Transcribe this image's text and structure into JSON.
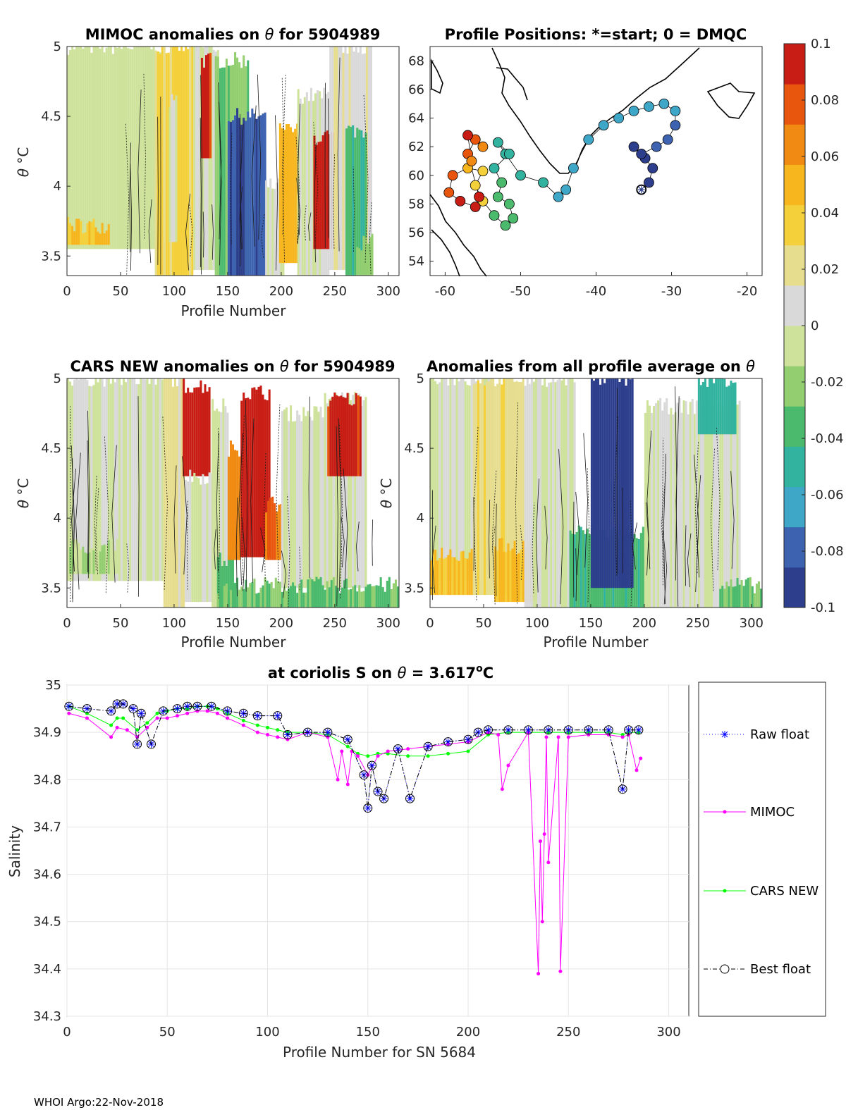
{
  "footer": "WHOI Argo:22-Nov-2018",
  "colors": {
    "raw": "#0000ff",
    "mimoc": "#ff00ff",
    "cars": "#00ff00",
    "best": "#000000",
    "colormap": [
      "#2c3e8c",
      "#3d62b0",
      "#3ea7c8",
      "#31b39f",
      "#4cba6c",
      "#93cf70",
      "#cfe29b",
      "#d9d9d9",
      "#e6dd8e",
      "#f4d03a",
      "#f7b51e",
      "#f08a12",
      "#e8560e",
      "#c81d14"
    ]
  },
  "chart_data": [
    {
      "id": "mimoc",
      "type": "heatmap",
      "title_prefix": "MIMOC anomalies on",
      "title_symbol": "θ",
      "title_suffix": "for 5904989",
      "xlabel": "Profile Number",
      "ylabel_symbol": "θ",
      "ylabel_unit": "°C",
      "xlim": [
        0,
        310
      ],
      "ylim": [
        3.36,
        5.0
      ],
      "xticks": [
        "0",
        "50",
        "100",
        "150",
        "200",
        "250",
        "300"
      ],
      "yticks": [
        "3.5",
        "4",
        "4.5",
        "5"
      ],
      "segments": [
        {
          "x": [
            0,
            88
          ],
          "ymin": 3.55,
          "ymax": 5.0,
          "anom": -0.008
        },
        {
          "x": [
            0,
            40
          ],
          "ymin": 3.58,
          "ymax": 3.72,
          "anom": 0.045
        },
        {
          "x": [
            82,
            118
          ],
          "ymin": 3.36,
          "ymax": 5.0,
          "anom": 0.03
        },
        {
          "x": [
            95,
            102
          ],
          "ymin": 3.6,
          "ymax": 4.6,
          "anom": 0.0
        },
        {
          "x": [
            118,
            142
          ],
          "ymin": 3.4,
          "ymax": 5.0,
          "anom": 0.0
        },
        {
          "x": [
            125,
            135
          ],
          "ymin": 4.2,
          "ymax": 4.9,
          "anom": 0.09
        },
        {
          "x": [
            138,
            170
          ],
          "ymin": 3.36,
          "ymax": 4.9,
          "anom": -0.025
        },
        {
          "x": [
            150,
            185
          ],
          "ymin": 3.36,
          "ymax": 4.5,
          "anom": -0.085
        },
        {
          "x": [
            185,
            203
          ],
          "ymin": 3.36,
          "ymax": 4.0,
          "anom": 0.0
        },
        {
          "x": [
            198,
            218
          ],
          "ymin": 3.45,
          "ymax": 4.4,
          "anom": 0.05
        },
        {
          "x": [
            215,
            245
          ],
          "ymin": 3.36,
          "ymax": 4.65,
          "anom": 0.0
        },
        {
          "x": [
            230,
            250
          ],
          "ymin": 3.55,
          "ymax": 4.35,
          "anom": 0.1
        },
        {
          "x": [
            245,
            285
          ],
          "ymin": 3.4,
          "ymax": 5.0,
          "anom": 0.012
        },
        {
          "x": [
            260,
            280
          ],
          "ymin": 3.36,
          "ymax": 4.4,
          "anom": -0.04
        },
        {
          "x": [
            270,
            285
          ],
          "ymin": 3.36,
          "ymax": 3.6,
          "anom": -0.02
        }
      ]
    },
    {
      "id": "positions",
      "type": "scatter",
      "title": "Profile Positions: *=start; 0 = DMQC",
      "xlim": [
        -62,
        -18
      ],
      "ylim": [
        53,
        69
      ],
      "xticks": [
        "-60",
        "-50",
        "-40",
        "-30",
        "-20"
      ],
      "yticks": [
        "54",
        "56",
        "58",
        "60",
        "62",
        "64",
        "66",
        "68"
      ],
      "start_marker": {
        "lon": -34,
        "lat": 59
      },
      "track": [
        {
          "lon": -34,
          "lat": 59,
          "anom": -0.095
        },
        {
          "lon": -33,
          "lat": 59.5,
          "anom": -0.095
        },
        {
          "lon": -32.5,
          "lat": 60.5,
          "anom": -0.092
        },
        {
          "lon": -33.5,
          "lat": 61.2,
          "anom": -0.09
        },
        {
          "lon": -35,
          "lat": 62,
          "anom": -0.088
        },
        {
          "lon": -34,
          "lat": 61.5,
          "anom": -0.088
        },
        {
          "lon": -32,
          "lat": 62,
          "anom": -0.085
        },
        {
          "lon": -30.5,
          "lat": 62.5,
          "anom": -0.08
        },
        {
          "lon": -29.5,
          "lat": 63.5,
          "anom": -0.075
        },
        {
          "lon": -29.5,
          "lat": 64.5,
          "anom": -0.07
        },
        {
          "lon": -31,
          "lat": 65,
          "anom": -0.066
        },
        {
          "lon": -33,
          "lat": 64.8,
          "anom": -0.066
        },
        {
          "lon": -35,
          "lat": 64.5,
          "anom": -0.064
        },
        {
          "lon": -37,
          "lat": 64,
          "anom": -0.064
        },
        {
          "lon": -39,
          "lat": 63.5,
          "anom": -0.064
        },
        {
          "lon": -41,
          "lat": 62.5,
          "anom": -0.062
        },
        {
          "lon": -43,
          "lat": 60.5,
          "anom": -0.06
        },
        {
          "lon": -44,
          "lat": 59,
          "anom": -0.058
        },
        {
          "lon": -45,
          "lat": 58.5,
          "anom": -0.058
        },
        {
          "lon": -47,
          "lat": 59.5,
          "anom": -0.056
        },
        {
          "lon": -50,
          "lat": 60,
          "anom": -0.054
        },
        {
          "lon": -52,
          "lat": 61.5,
          "anom": -0.05
        },
        {
          "lon": -53,
          "lat": 62.3,
          "anom": -0.05
        },
        {
          "lon": -51.5,
          "lat": 61.5,
          "anom": -0.046
        },
        {
          "lon": -53.5,
          "lat": 60.5,
          "anom": -0.044
        },
        {
          "lon": -52.5,
          "lat": 59.5,
          "anom": -0.042
        },
        {
          "lon": -53,
          "lat": 58.5,
          "anom": -0.04
        },
        {
          "lon": -51.5,
          "lat": 58,
          "anom": -0.038
        },
        {
          "lon": -51,
          "lat": 57,
          "anom": -0.036
        },
        {
          "lon": -52,
          "lat": 56.5,
          "anom": -0.034
        },
        {
          "lon": -53.5,
          "lat": 57.2,
          "anom": -0.032
        },
        {
          "lon": -55,
          "lat": 58.2,
          "anom": 0.032
        },
        {
          "lon": -56,
          "lat": 59.3,
          "anom": 0.035
        },
        {
          "lon": -55,
          "lat": 60.3,
          "anom": 0.04
        },
        {
          "lon": -57,
          "lat": 60.5,
          "anom": 0.05
        },
        {
          "lon": -59,
          "lat": 60,
          "anom": 0.08
        },
        {
          "lon": -59.5,
          "lat": 58.8,
          "anom": 0.085
        },
        {
          "lon": -58,
          "lat": 58.2,
          "anom": 0.09
        },
        {
          "lon": -56,
          "lat": 57.8,
          "anom": 0.1
        },
        {
          "lon": -55.5,
          "lat": 58.5,
          "anom": 0.095
        },
        {
          "lon": -57,
          "lat": 61.5,
          "anom": 0.085
        },
        {
          "lon": -56,
          "lat": 62.5,
          "anom": 0.08
        },
        {
          "lon": -55,
          "lat": 62,
          "anom": 0.07
        },
        {
          "lon": -57,
          "lat": 62.8,
          "anom": 0.09
        },
        {
          "lon": -56.5,
          "lat": 61,
          "anom": 0.06
        }
      ]
    },
    {
      "id": "cars",
      "type": "heatmap",
      "title_prefix": "CARS NEW anomalies on",
      "title_symbol": "θ",
      "title_suffix": "for 5904989",
      "xlabel": "Profile Number",
      "ylabel_symbol": "θ",
      "ylabel_unit": "°C",
      "xlim": [
        0,
        310
      ],
      "ylim": [
        3.36,
        5.0
      ],
      "xticks": [
        "0",
        "50",
        "100",
        "150",
        "200",
        "250",
        "300"
      ],
      "yticks": [
        "3.5",
        "4",
        "4.5",
        "5"
      ],
      "segments": [
        {
          "x": [
            0,
            90
          ],
          "ymin": 3.55,
          "ymax": 5.0,
          "anom": 0.0
        },
        {
          "x": [
            0,
            50
          ],
          "ymin": 3.6,
          "ymax": 3.8,
          "anom": -0.015
        },
        {
          "x": [
            90,
            110
          ],
          "ymin": 3.36,
          "ymax": 5.0,
          "anom": 0.02
        },
        {
          "x": [
            108,
            133
          ],
          "ymin": 4.3,
          "ymax": 4.95,
          "anom": 0.1
        },
        {
          "x": [
            110,
            135
          ],
          "ymin": 3.4,
          "ymax": 4.3,
          "anom": 0.0
        },
        {
          "x": [
            135,
            150
          ],
          "ymin": 3.36,
          "ymax": 4.8,
          "anom": 0.0
        },
        {
          "x": [
            140,
            155
          ],
          "ymin": 3.36,
          "ymax": 3.7,
          "anom": -0.04
        },
        {
          "x": [
            150,
            162
          ],
          "ymin": 3.7,
          "ymax": 4.5,
          "anom": 0.06
        },
        {
          "x": [
            162,
            190
          ],
          "ymin": 3.72,
          "ymax": 4.9,
          "anom": 0.1
        },
        {
          "x": [
            185,
            200
          ],
          "ymin": 3.7,
          "ymax": 4.1,
          "anom": 0.07
        },
        {
          "x": [
            200,
            245
          ],
          "ymin": 3.5,
          "ymax": 4.75,
          "anom": 0.0
        },
        {
          "x": [
            240,
            280
          ],
          "ymin": 3.5,
          "ymax": 4.85,
          "anom": 0.0
        },
        {
          "x": [
            243,
            275
          ],
          "ymin": 4.3,
          "ymax": 4.85,
          "anom": 0.09
        },
        {
          "x": [
            140,
            310
          ],
          "ymin": 3.36,
          "ymax": 3.52,
          "anom": -0.03
        }
      ]
    },
    {
      "id": "allavg",
      "type": "heatmap",
      "title_prefix": "Anomalies from all profile average on",
      "title_symbol": "θ",
      "title_suffix": "",
      "xlabel": "Profile Number",
      "ylabel_symbol": "θ",
      "ylabel_unit": "°C",
      "xlim": [
        0,
        310
      ],
      "ylim": [
        3.36,
        5.0
      ],
      "xticks": [
        "0",
        "50",
        "100",
        "150",
        "200",
        "250",
        "300"
      ],
      "yticks": [
        "3.5",
        "4",
        "4.5",
        "5"
      ],
      "segments": [
        {
          "x": [
            0,
            60
          ],
          "ymin": 3.55,
          "ymax": 5.0,
          "anom": 0.0
        },
        {
          "x": [
            0,
            40
          ],
          "ymin": 3.45,
          "ymax": 3.75,
          "anom": 0.045
        },
        {
          "x": [
            40,
            88
          ],
          "ymin": 3.45,
          "ymax": 5.0,
          "anom": 0.025
        },
        {
          "x": [
            60,
            100
          ],
          "ymin": 3.4,
          "ymax": 3.8,
          "anom": 0.045
        },
        {
          "x": [
            88,
            135
          ],
          "ymin": 3.36,
          "ymax": 5.0,
          "anom": 0.0
        },
        {
          "x": [
            130,
            200
          ],
          "ymin": 3.36,
          "ymax": 3.9,
          "anom": -0.04
        },
        {
          "x": [
            150,
            190
          ],
          "ymin": 3.5,
          "ymax": 5.0,
          "anom": -0.095
        },
        {
          "x": [
            200,
            290
          ],
          "ymin": 3.36,
          "ymax": 4.8,
          "anom": 0.0
        },
        {
          "x": [
            250,
            285
          ],
          "ymin": 4.6,
          "ymax": 5.0,
          "anom": -0.05
        },
        {
          "x": [
            270,
            310
          ],
          "ymin": 3.36,
          "ymax": 3.52,
          "anom": -0.03
        }
      ]
    }
  ],
  "colorbar": {
    "min": -0.1,
    "max": 0.1,
    "ticks": [
      "0.1",
      "0.08",
      "0.06",
      "0.04",
      "0.02",
      "0",
      "-0.02",
      "-0.04",
      "-0.06",
      "-0.08",
      "-0.1"
    ]
  },
  "salinity": {
    "type": "line",
    "title_prefix": "at coriolis S on",
    "title_symbol": "θ",
    "title_mid": "= 3.617",
    "title_unit_sup": "o",
    "title_unit": "C",
    "xlabel": "Profile Number for SN 5684",
    "ylabel": "Salinity",
    "xlim": [
      0,
      310
    ],
    "ylim": [
      34.3,
      35.0
    ],
    "xticks": [
      "0",
      "50",
      "100",
      "150",
      "200",
      "250",
      "300"
    ],
    "yticks": [
      "34.3",
      "34.4",
      "34.5",
      "34.6",
      "34.7",
      "34.8",
      "34.9",
      "35"
    ],
    "legend": [
      "Raw float",
      "MIMOC",
      "CARS NEW",
      "Best float"
    ],
    "series": [
      {
        "name": "Raw float",
        "x": [
          1,
          10,
          22,
          25,
          28,
          33,
          35,
          37,
          42,
          48,
          55,
          60,
          65,
          72,
          80,
          88,
          95,
          105,
          110,
          120,
          130,
          140,
          148,
          150,
          152,
          155,
          158,
          165,
          171,
          180,
          190,
          200,
          205,
          210,
          220,
          230,
          240,
          250,
          260,
          270,
          277,
          280,
          285
        ],
        "y": [
          34.955,
          34.95,
          34.945,
          34.96,
          34.96,
          34.95,
          34.875,
          34.94,
          34.875,
          34.945,
          34.95,
          34.955,
          34.955,
          34.955,
          34.945,
          34.94,
          34.935,
          34.935,
          34.895,
          34.9,
          34.9,
          34.885,
          34.81,
          34.74,
          34.83,
          34.775,
          34.76,
          34.865,
          34.76,
          34.87,
          34.88,
          34.885,
          34.9,
          34.905,
          34.905,
          34.905,
          34.905,
          34.905,
          34.905,
          34.905,
          34.78,
          34.905,
          34.905
        ]
      },
      {
        "name": "MIMOC",
        "x": [
          1,
          10,
          22,
          25,
          30,
          35,
          40,
          45,
          50,
          55,
          60,
          65,
          70,
          75,
          80,
          88,
          95,
          100,
          105,
          110,
          120,
          130,
          135,
          137,
          140,
          142,
          145,
          150,
          155,
          160,
          170,
          180,
          190,
          200,
          210,
          215,
          217,
          220,
          230,
          235,
          236,
          237,
          238,
          239,
          240,
          245,
          246,
          250,
          260,
          270,
          277,
          280,
          284,
          286
        ],
        "y": [
          34.94,
          34.93,
          34.89,
          34.91,
          34.905,
          34.89,
          34.91,
          34.93,
          34.93,
          34.935,
          34.94,
          34.945,
          34.945,
          34.94,
          34.93,
          34.915,
          34.9,
          34.895,
          34.89,
          34.885,
          34.9,
          34.89,
          34.8,
          34.86,
          34.79,
          34.86,
          34.85,
          34.81,
          34.85,
          34.86,
          34.865,
          34.87,
          34.875,
          34.88,
          34.9,
          34.895,
          34.78,
          34.83,
          34.9,
          34.39,
          34.67,
          34.5,
          34.685,
          34.89,
          34.625,
          34.89,
          34.395,
          34.89,
          34.895,
          34.895,
          34.89,
          34.895,
          34.82,
          34.845
        ]
      },
      {
        "name": "CARS NEW",
        "x": [
          1,
          10,
          22,
          25,
          28,
          35,
          40,
          45,
          50,
          55,
          60,
          65,
          70,
          75,
          80,
          88,
          95,
          100,
          105,
          110,
          120,
          130,
          140,
          145,
          150,
          155,
          160,
          170,
          180,
          190,
          200,
          210,
          220,
          230,
          240,
          250,
          260,
          270,
          277,
          280,
          285
        ],
        "y": [
          34.955,
          34.94,
          34.915,
          34.93,
          34.93,
          34.905,
          34.92,
          34.94,
          34.945,
          34.95,
          34.95,
          34.955,
          34.955,
          34.95,
          34.94,
          34.925,
          34.915,
          34.91,
          34.905,
          34.9,
          34.9,
          34.895,
          34.87,
          34.855,
          34.85,
          34.855,
          34.855,
          34.85,
          34.85,
          34.855,
          34.86,
          34.895,
          34.9,
          34.9,
          34.9,
          34.9,
          34.9,
          34.9,
          34.895,
          34.9,
          34.9
        ]
      },
      {
        "name": "Best float",
        "x": [
          1,
          10,
          22,
          25,
          28,
          33,
          35,
          37,
          42,
          48,
          55,
          60,
          65,
          72,
          80,
          88,
          95,
          105,
          110,
          120,
          130,
          140,
          148,
          150,
          152,
          155,
          158,
          165,
          171,
          180,
          190,
          200,
          205,
          210,
          220,
          230,
          240,
          250,
          260,
          270,
          277,
          280,
          285
        ],
        "y": [
          34.955,
          34.95,
          34.945,
          34.96,
          34.96,
          34.95,
          34.875,
          34.94,
          34.875,
          34.945,
          34.95,
          34.955,
          34.955,
          34.955,
          34.945,
          34.94,
          34.935,
          34.935,
          34.895,
          34.9,
          34.9,
          34.885,
          34.81,
          34.74,
          34.83,
          34.775,
          34.76,
          34.865,
          34.76,
          34.87,
          34.88,
          34.885,
          34.9,
          34.905,
          34.905,
          34.905,
          34.905,
          34.905,
          34.905,
          34.905,
          34.78,
          34.905,
          34.905
        ]
      }
    ]
  }
}
